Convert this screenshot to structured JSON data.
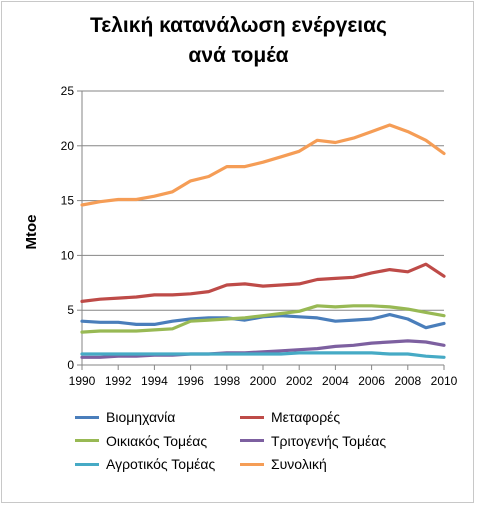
{
  "chart_data": {
    "type": "line",
    "title": "Τελική κατανάλωση ενέργειας",
    "subtitle": "ανά τομέα",
    "xlabel": "",
    "ylabel": "Mtoe",
    "ylim": [
      0,
      25
    ],
    "yticks": [
      0,
      5,
      10,
      15,
      20,
      25
    ],
    "xlim": [
      1990,
      2010
    ],
    "xticks": [
      1990,
      1992,
      1994,
      1996,
      1998,
      2000,
      2002,
      2004,
      2006,
      2008,
      2010
    ],
    "grid": "horizontal",
    "legend_position": "bottom",
    "x": [
      1990,
      1991,
      1992,
      1993,
      1994,
      1995,
      1996,
      1997,
      1998,
      1999,
      2000,
      2001,
      2002,
      2003,
      2004,
      2005,
      2006,
      2007,
      2008,
      2009,
      2010
    ],
    "series": [
      {
        "name": "Βιομηχανία",
        "color": "#4a7ebb",
        "values": [
          4.0,
          3.9,
          3.9,
          3.7,
          3.7,
          4.0,
          4.2,
          4.3,
          4.3,
          4.1,
          4.4,
          4.5,
          4.4,
          4.3,
          4.0,
          4.1,
          4.2,
          4.6,
          4.2,
          3.4,
          3.8
        ]
      },
      {
        "name": "Μεταφορές",
        "color": "#be4b48",
        "values": [
          5.8,
          6.0,
          6.1,
          6.2,
          6.4,
          6.4,
          6.5,
          6.7,
          7.3,
          7.4,
          7.2,
          7.3,
          7.4,
          7.8,
          7.9,
          8.0,
          8.4,
          8.7,
          8.5,
          9.2,
          8.1
        ]
      },
      {
        "name": "Οικιακός Τομέας",
        "color": "#98b954",
        "values": [
          3.0,
          3.1,
          3.1,
          3.1,
          3.2,
          3.3,
          4.0,
          4.1,
          4.2,
          4.3,
          4.5,
          4.7,
          4.9,
          5.4,
          5.3,
          5.4,
          5.4,
          5.3,
          5.1,
          4.8,
          4.5
        ]
      },
      {
        "name": "Τριτογενής Τομέας",
        "color": "#7d60a0",
        "values": [
          0.7,
          0.7,
          0.8,
          0.8,
          0.9,
          0.9,
          1.0,
          1.0,
          1.1,
          1.1,
          1.2,
          1.3,
          1.4,
          1.5,
          1.7,
          1.8,
          2.0,
          2.1,
          2.2,
          2.1,
          1.8
        ]
      },
      {
        "name": "Αγροτικός Τομέας",
        "color": "#46aac5",
        "values": [
          1.0,
          1.0,
          1.0,
          1.0,
          1.0,
          1.0,
          1.0,
          1.0,
          1.0,
          1.0,
          1.0,
          1.0,
          1.1,
          1.1,
          1.1,
          1.1,
          1.1,
          1.0,
          1.0,
          0.8,
          0.7
        ]
      },
      {
        "name": "Συνολική",
        "color": "#f59d56",
        "values": [
          14.6,
          14.9,
          15.1,
          15.1,
          15.4,
          15.8,
          16.8,
          17.2,
          18.1,
          18.1,
          18.5,
          19.0,
          19.5,
          20.5,
          20.3,
          20.7,
          21.3,
          21.9,
          21.3,
          20.5,
          19.3
        ]
      }
    ]
  }
}
